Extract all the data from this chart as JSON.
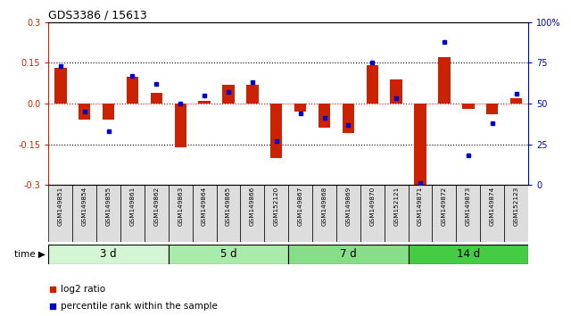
{
  "title": "GDS3386 / 15613",
  "samples": [
    "GSM149851",
    "GSM149854",
    "GSM149855",
    "GSM149861",
    "GSM149862",
    "GSM149863",
    "GSM149864",
    "GSM149865",
    "GSM149866",
    "GSM152120",
    "GSM149867",
    "GSM149868",
    "GSM149869",
    "GSM149870",
    "GSM152121",
    "GSM149871",
    "GSM149872",
    "GSM149873",
    "GSM149874",
    "GSM152123"
  ],
  "log2_ratio": [
    0.13,
    -0.06,
    -0.06,
    0.1,
    0.04,
    -0.16,
    0.01,
    0.07,
    0.07,
    -0.2,
    -0.03,
    -0.09,
    -0.11,
    0.14,
    0.09,
    -0.3,
    0.17,
    -0.02,
    -0.04,
    0.02
  ],
  "percentile": [
    73,
    45,
    33,
    67,
    62,
    50,
    55,
    57,
    63,
    27,
    44,
    41,
    37,
    75,
    53,
    1,
    88,
    18,
    38,
    56
  ],
  "groups": [
    {
      "label": "3 d",
      "start": 0,
      "end": 5,
      "color": "#d4f5d4"
    },
    {
      "label": "5 d",
      "start": 5,
      "end": 10,
      "color": "#aaeaaa"
    },
    {
      "label": "7 d",
      "start": 10,
      "end": 15,
      "color": "#88dd88"
    },
    {
      "label": "14 d",
      "start": 15,
      "end": 20,
      "color": "#44cc44"
    }
  ],
  "ylim_left": [
    -0.3,
    0.3
  ],
  "ylim_right": [
    0,
    100
  ],
  "bar_color": "#cc2200",
  "dot_color": "#0000cc",
  "background_color": "#ffffff",
  "cell_color": "#dddddd",
  "tick_left": [
    -0.3,
    -0.15,
    0.0,
    0.15,
    0.3
  ],
  "tick_right": [
    0,
    25,
    50,
    75,
    100
  ]
}
